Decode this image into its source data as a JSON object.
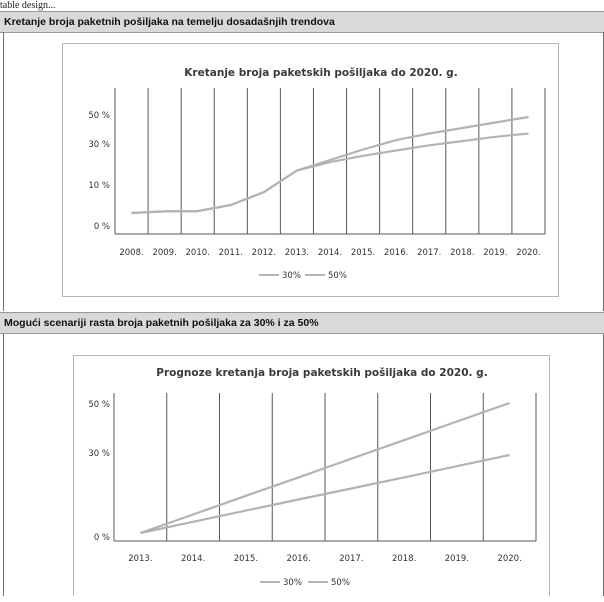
{
  "caption": "table design...",
  "section1": {
    "title": "Kretanje broja paketnih pošiljaka na temelju dosadašnjih trendova"
  },
  "section2": {
    "title": "Mogući scenariji rasta broja paketnih pošiljaka za 30% i za 50%"
  },
  "colors": {
    "band": "#d9d9d9",
    "line": "#b0b0b0",
    "grid": "#7a7a7a"
  },
  "chart_data": [
    {
      "type": "line",
      "title": "Kretanje broja paketskih pošiljaka do 2020. g.",
      "categories": [
        "2008.",
        "2009.",
        "2010.",
        "2011.",
        "2012.",
        "2013.",
        "2014.",
        "2015.",
        "2016.",
        "2017.",
        "2018.",
        "2019.",
        "2020."
      ],
      "y_ticks": [
        "0 %",
        "10 %",
        "30 %",
        "50 %"
      ],
      "series": [
        {
          "name": "30%",
          "values": [
            0,
            0.5,
            0.6,
            2.5,
            6.5,
            15,
            19,
            22,
            24.5,
            27,
            29,
            32,
            35
          ]
        },
        {
          "name": "50%",
          "values": [
            0,
            0.5,
            0.6,
            2.5,
            6.5,
            15,
            20,
            25,
            29.5,
            35,
            40,
            45,
            50
          ]
        }
      ],
      "legend": "bottom",
      "grid": "vertical"
    },
    {
      "type": "line",
      "title": "Prognoze kretanja broja paketskih pošiljaka do 2020. g.",
      "categories": [
        "2013.",
        "2014.",
        "2015.",
        "2016.",
        "2017.",
        "2018.",
        "2019.",
        "2020."
      ],
      "y_ticks": [
        "0 %",
        "30 %",
        "50 %"
      ],
      "series": [
        {
          "name": "30%",
          "values": [
            0,
            4.3,
            8.6,
            12.9,
            17.1,
            21.4,
            25.7,
            30
          ]
        },
        {
          "name": "50%",
          "values": [
            0,
            7.1,
            14.3,
            21.4,
            28.6,
            35.7,
            42.9,
            50
          ]
        }
      ],
      "legend": "bottom",
      "grid": "vertical"
    }
  ]
}
